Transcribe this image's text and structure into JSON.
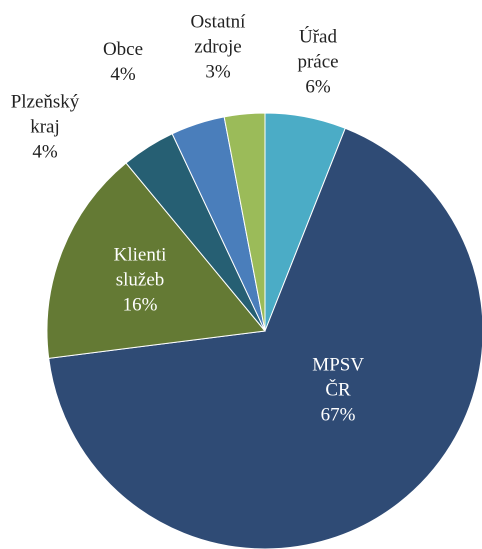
{
  "chart_data": {
    "type": "pie",
    "categories": [
      "Úřad práce",
      "MPSV ČR",
      "Klienti služeb",
      "Plzeňský kraj",
      "Obce",
      "Ostatní zdroje"
    ],
    "values": [
      6,
      67,
      16,
      4,
      4,
      3
    ],
    "value_labels": [
      "6%",
      "67%",
      "16%",
      "4%",
      "4%",
      "3%"
    ],
    "colors": [
      "#4bacc6",
      "#2f4b75",
      "#647a34",
      "#265f73",
      "#4a7ebb",
      "#9bbb59"
    ]
  }
}
